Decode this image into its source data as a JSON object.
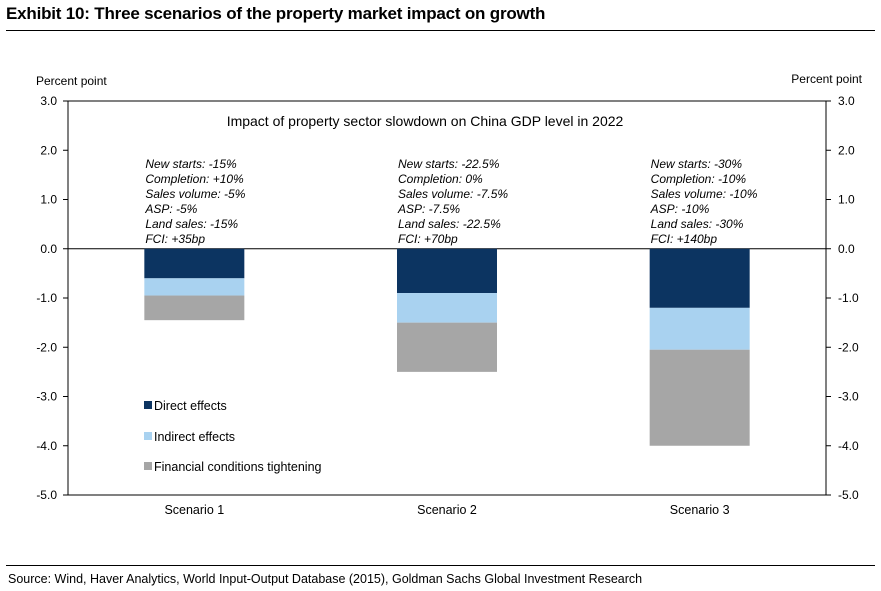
{
  "exhibit_title": "Exhibit 10: Three scenarios of the property market impact on growth",
  "source": "Source: Wind, Haver Analytics, World Input-Output Database (2015), Goldman Sachs Global Investment Research",
  "colors": {
    "direct": "#0c3461",
    "indirect": "#a9d2f0",
    "financial": "#a6a6a6"
  },
  "chart_data": {
    "type": "bar",
    "stacked": true,
    "title": "Impact of property sector slowdown on China GDP level in 2022",
    "ylabel_left": "Percent point",
    "ylabel_right": "Percent point",
    "ylim": [
      -5.0,
      3.0
    ],
    "yticks": [
      "3.0",
      "2.0",
      "1.0",
      "0.0",
      "-1.0",
      "-2.0",
      "-3.0",
      "-4.0",
      "-5.0"
    ],
    "ytick_values": [
      3,
      2,
      1,
      0,
      -1,
      -2,
      -3,
      -4,
      -5
    ],
    "categories": [
      "Scenario 1",
      "Scenario 2",
      "Scenario 3"
    ],
    "series": [
      {
        "name": "Direct effects",
        "values": [
          -0.6,
          -0.9,
          -1.2
        ]
      },
      {
        "name": "Indirect effects",
        "values": [
          -0.35,
          -0.6,
          -0.85
        ]
      },
      {
        "name": "Financial conditions tightening",
        "values": [
          -0.5,
          -1.0,
          -1.95
        ]
      }
    ],
    "legend_position": "bottom-left",
    "grid": false,
    "annotations": [
      [
        "New starts: -15%",
        "Completion: +10%",
        "Sales volume: -5%",
        "ASP: -5%",
        "Land sales: -15%",
        "FCI: +35bp"
      ],
      [
        "New starts: -22.5%",
        "Completion: 0%",
        "Sales volume: -7.5%",
        "ASP: -7.5%",
        "Land sales: -22.5%",
        "FCI: +70bp"
      ],
      [
        "New starts: -30%",
        "Completion: -10%",
        "Sales volume: -10%",
        "ASP: -10%",
        "Land sales: -30%",
        "FCI: +140bp"
      ]
    ]
  }
}
